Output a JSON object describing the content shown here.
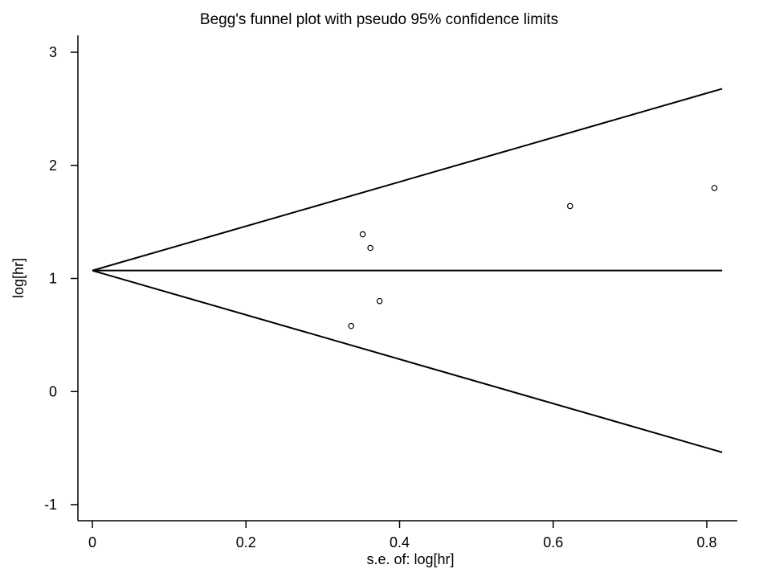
{
  "chart_data": {
    "type": "scatter",
    "title": "Begg's funnel plot with pseudo 95% confidence limits",
    "xlabel": "s.e. of: log[hr]",
    "ylabel": "log[hr]",
    "xlim": [
      0,
      0.83
    ],
    "ylim": [
      -1,
      3
    ],
    "x_ticks": [
      0,
      0.2,
      0.4,
      0.6,
      0.8
    ],
    "x_tick_labels": [
      "0",
      "0.2",
      "0.4",
      "0.6",
      "0.8"
    ],
    "y_ticks": [
      -1,
      0,
      1,
      2,
      3
    ],
    "y_tick_labels": [
      "-1",
      "0",
      "1",
      "2",
      "3"
    ],
    "pooled_log_hr": 1.07,
    "funnel_max_se": 0.82,
    "points": [
      {
        "x": 0.337,
        "y": 0.58
      },
      {
        "x": 0.352,
        "y": 1.39
      },
      {
        "x": 0.362,
        "y": 1.27
      },
      {
        "x": 0.374,
        "y": 0.8
      },
      {
        "x": 0.622,
        "y": 1.64
      },
      {
        "x": 0.81,
        "y": 1.8
      }
    ],
    "grid": false,
    "legend": "none"
  }
}
